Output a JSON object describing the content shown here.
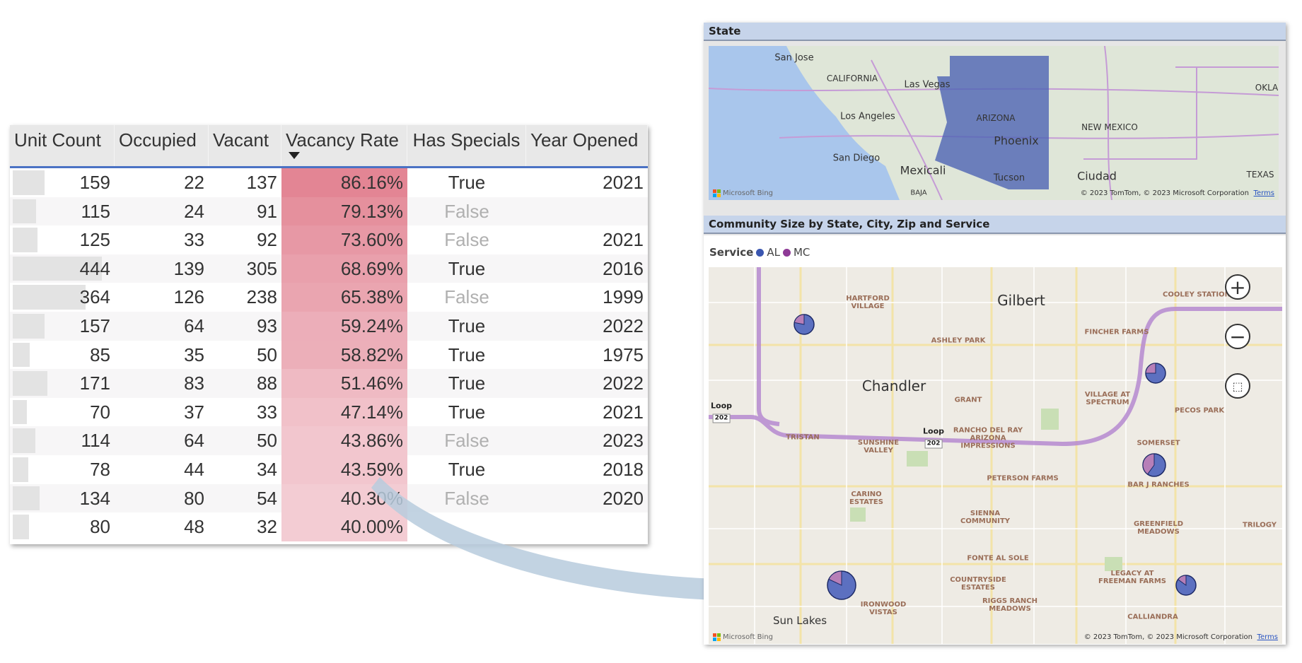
{
  "table": {
    "columns": [
      "Unit Count",
      "Occupied",
      "Vacant",
      "Vacancy Rate",
      "Has Specials",
      "Year Opened"
    ],
    "sorted_column": "Vacancy Rate",
    "rows": [
      {
        "unit_count": 159,
        "occupied": 22,
        "vacant": 137,
        "vacancy_rate": "86.16%",
        "rate": 86.16,
        "has_specials": "True",
        "year_opened": "2021"
      },
      {
        "unit_count": 115,
        "occupied": 24,
        "vacant": 91,
        "vacancy_rate": "79.13%",
        "rate": 79.13,
        "has_specials": "False",
        "year_opened": ""
      },
      {
        "unit_count": 125,
        "occupied": 33,
        "vacant": 92,
        "vacancy_rate": "73.60%",
        "rate": 73.6,
        "has_specials": "False",
        "year_opened": "2021"
      },
      {
        "unit_count": 444,
        "occupied": 139,
        "vacant": 305,
        "vacancy_rate": "68.69%",
        "rate": 68.69,
        "has_specials": "True",
        "year_opened": "2016"
      },
      {
        "unit_count": 364,
        "occupied": 126,
        "vacant": 238,
        "vacancy_rate": "65.38%",
        "rate": 65.38,
        "has_specials": "False",
        "year_opened": "1999"
      },
      {
        "unit_count": 157,
        "occupied": 64,
        "vacant": 93,
        "vacancy_rate": "59.24%",
        "rate": 59.24,
        "has_specials": "True",
        "year_opened": "2022"
      },
      {
        "unit_count": 85,
        "occupied": 35,
        "vacant": 50,
        "vacancy_rate": "58.82%",
        "rate": 58.82,
        "has_specials": "True",
        "year_opened": "1975"
      },
      {
        "unit_count": 171,
        "occupied": 83,
        "vacant": 88,
        "vacancy_rate": "51.46%",
        "rate": 51.46,
        "has_specials": "True",
        "year_opened": "2022"
      },
      {
        "unit_count": 70,
        "occupied": 37,
        "vacant": 33,
        "vacancy_rate": "47.14%",
        "rate": 47.14,
        "has_specials": "True",
        "year_opened": "2021"
      },
      {
        "unit_count": 114,
        "occupied": 64,
        "vacant": 50,
        "vacancy_rate": "43.86%",
        "rate": 43.86,
        "has_specials": "False",
        "year_opened": "2023"
      },
      {
        "unit_count": 78,
        "occupied": 44,
        "vacant": 34,
        "vacancy_rate": "43.59%",
        "rate": 43.59,
        "has_specials": "True",
        "year_opened": "2018"
      },
      {
        "unit_count": 134,
        "occupied": 80,
        "vacant": 54,
        "vacancy_rate": "40.30%",
        "rate": 40.3,
        "has_specials": "False",
        "year_opened": "2020"
      },
      {
        "unit_count": 80,
        "occupied": 48,
        "vacant": 32,
        "vacancy_rate": "40.00%",
        "rate": 40.0,
        "has_specials": "",
        "year_opened": ""
      }
    ]
  },
  "state_map": {
    "title": "State",
    "labels": [
      "San Jose",
      "CALIFORNIA",
      "Las Vegas",
      "Los Angeles",
      "ARIZONA",
      "Phoenix",
      "NEW MEXICO",
      "San Diego",
      "Mexicali",
      "Tucson",
      "BAJA",
      "OKLA",
      "TEXAS",
      "Ciudad"
    ],
    "highlight_color": "#4e64b4",
    "bing": "Microsoft Bing",
    "copyright": "© 2023 TomTom, © 2023 Microsoft Corporation",
    "terms": "Terms"
  },
  "community_map": {
    "title": "Community Size by State, City, Zip and Service",
    "legend_title": "Service",
    "legend": [
      {
        "label": "AL",
        "color": "#3a56b0"
      },
      {
        "label": "MC",
        "color": "#8e3a96"
      }
    ],
    "cities": [
      "Gilbert",
      "Chandler",
      "Sun Lakes"
    ],
    "road_label": "Loop",
    "road_number": "202",
    "places": [
      "HARTFORD\nVILLAGE",
      "ASHLEY PARK",
      "FINCHER FARMS",
      "COOLEY STATION",
      "VILLAGE AT\nSPECTRUM",
      "GRANT",
      "PECOS PARK",
      "TRISTAN",
      "SUNSHINE\nVALLEY",
      "RANCHO DEL RAY\nARIZONA\nIMPRESSIONS",
      "SOMERSET",
      "BAR J RANCHES",
      "PETERSON FARMS",
      "CARINO\nESTATES",
      "SIENNA\nCOMMUNITY",
      "GREENFIELD\nMEADOWS",
      "TRILOGY",
      "FONTE AL SOLE",
      "COUNTRYSIDE\nESTATES",
      "LEGACY AT\nFREEMAN FARMS",
      "RIGGS RANCH\nMEADOWS",
      "IRONWOOD\nVISTAS",
      "CALLIANDRA"
    ],
    "pies": [
      {
        "al": 0.78,
        "mc": 0.22
      },
      {
        "al": 0.75,
        "mc": 0.25
      },
      {
        "al": 0.6,
        "mc": 0.4
      },
      {
        "al": 0.82,
        "mc": 0.18
      },
      {
        "al": 0.85,
        "mc": 0.15
      }
    ],
    "bing": "Microsoft Bing",
    "copyright": "© 2023 TomTom, © 2023 Microsoft Corporation",
    "terms": "Terms"
  }
}
